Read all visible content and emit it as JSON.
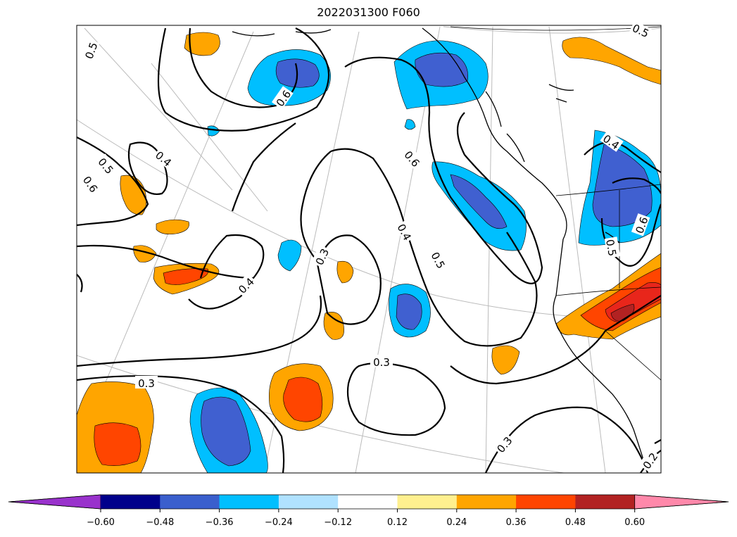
{
  "title": "2022031300 F060",
  "fill_colors": {
    "orange": "#ffa500",
    "orange_red": "#ff4500",
    "red": "#e8261b",
    "dark_red": "#b22222",
    "sky": "#00bfff",
    "royal": "#4060d0"
  },
  "line_color": "#000000",
  "grid_color": "#bbbbbb",
  "contour_labels": [
    "0.5",
    "0.6",
    "0.5",
    "0.6",
    "0.4",
    "0.6",
    "0.4",
    "0.5",
    "0.4",
    "0.3",
    "0.3",
    "0.3",
    "0.3",
    "0.2",
    "0.4",
    "0.5",
    "0.6",
    "0.5"
  ],
  "colorbar": {
    "ticks": [
      "−0.60",
      "−0.48",
      "−0.36",
      "−0.24",
      "−0.12",
      "0.12",
      "0.24",
      "0.36",
      "0.48",
      "0.60"
    ],
    "under_color": "#9932cc",
    "over_color": "#ff88aa",
    "colors": [
      "#00008b",
      "#3a5fcd",
      "#00bfff",
      "#b0e2ff",
      "#ffffff",
      "#fff08f",
      "#ffa500",
      "#ff4500",
      "#b22222"
    ]
  }
}
